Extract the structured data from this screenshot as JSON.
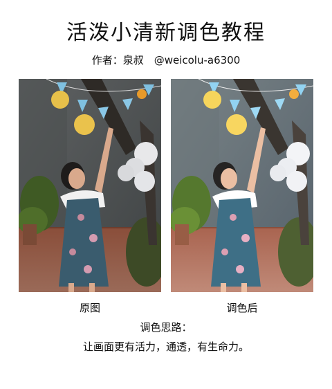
{
  "page": {
    "title": "活泼小清新调色教程",
    "author_line": "作者：泉叔　@weicolu-a6300"
  },
  "photos": {
    "original_caption": "原图",
    "graded_caption": "调色后"
  },
  "notes": {
    "heading": "调色思路：",
    "text": "让画面更有活力，通透，有生命力。"
  }
}
